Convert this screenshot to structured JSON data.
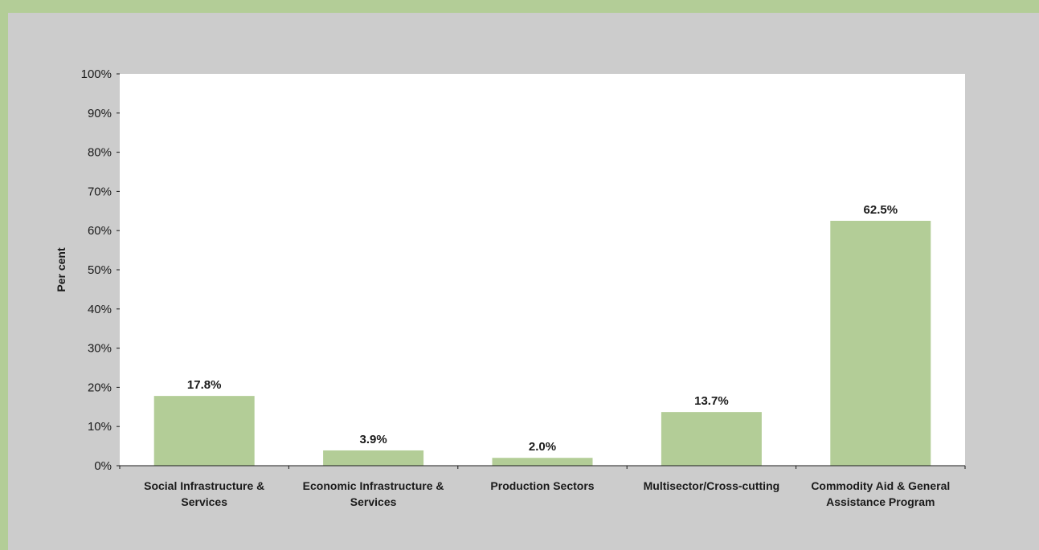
{
  "colors": {
    "border": "#b3cd97",
    "panel": "#cccccc",
    "plot": "#ffffff",
    "bar": "#b3cd97",
    "axis": "#1a1a1a"
  },
  "chart_data": {
    "type": "bar",
    "title": "",
    "xlabel": "",
    "ylabel": "Per cent",
    "ylim": [
      0,
      100
    ],
    "yticks": [
      "0%",
      "10%",
      "20%",
      "30%",
      "40%",
      "50%",
      "60%",
      "70%",
      "80%",
      "90%",
      "100%"
    ],
    "grid": false,
    "categories": [
      [
        "Social Infrastructure &",
        "Services"
      ],
      [
        "Economic Infrastructure &",
        "Services"
      ],
      [
        "Production Sectors"
      ],
      [
        "Multisector/Cross-cutting"
      ],
      [
        "Commodity Aid & General",
        "Assistance Program"
      ]
    ],
    "values": [
      17.8,
      3.9,
      2.0,
      13.7,
      62.5
    ],
    "data_labels": [
      "17.8%",
      "3.9%",
      "2.0%",
      "13.7%",
      "62.5%"
    ]
  }
}
